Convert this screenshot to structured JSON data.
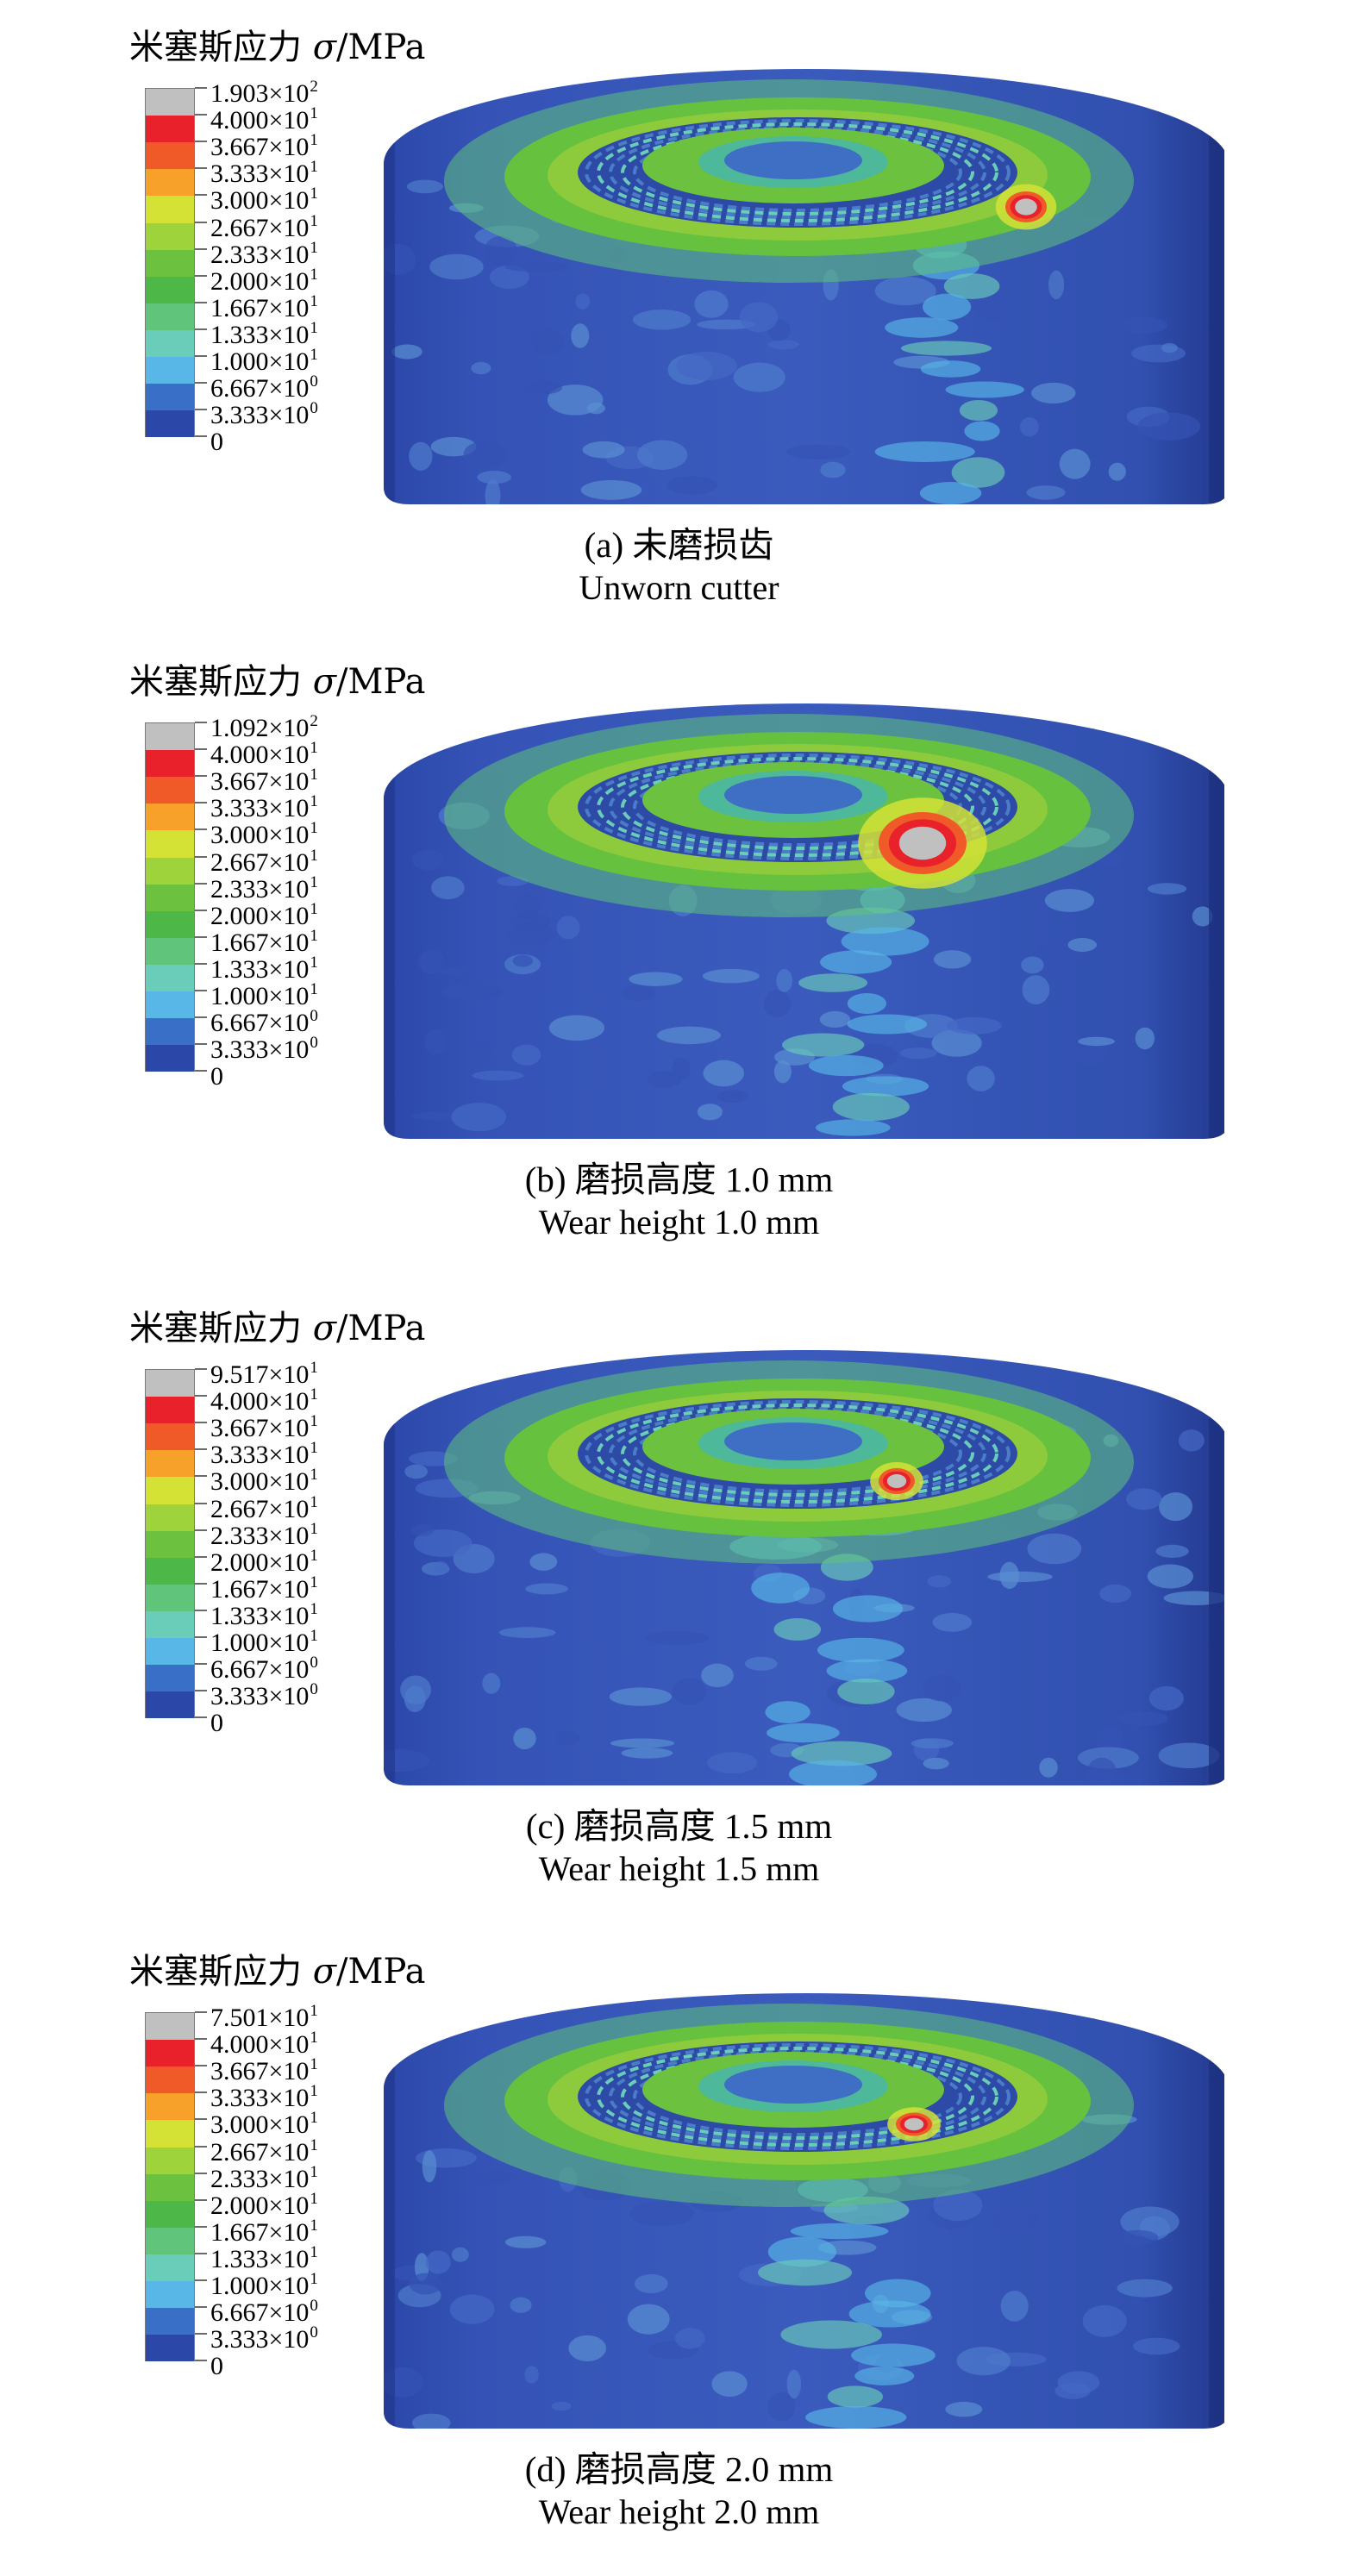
{
  "legend_title_text": "米塞斯应力 ",
  "legend_title_symbol": "σ",
  "legend_title_unit": "/MPa",
  "colors": [
    "#c0c0c0",
    "#e8212b",
    "#f05a28",
    "#f7a12a",
    "#d4e236",
    "#9fd33c",
    "#6cc23e",
    "#4db848",
    "#60c47a",
    "#6acdb9",
    "#58b7e6",
    "#3a6fc8",
    "#2b48a9"
  ],
  "panels": [
    {
      "id": "a",
      "labels": [
        {
          "base": "1.903×10",
          "exp": "2"
        },
        {
          "base": "4.000×10",
          "exp": "1"
        },
        {
          "base": "3.667×10",
          "exp": "1"
        },
        {
          "base": "3.333×10",
          "exp": "1"
        },
        {
          "base": "3.000×10",
          "exp": "1"
        },
        {
          "base": "2.667×10",
          "exp": "1"
        },
        {
          "base": "2.333×10",
          "exp": "1"
        },
        {
          "base": "2.000×10",
          "exp": "1"
        },
        {
          "base": "1.667×10",
          "exp": "1"
        },
        {
          "base": "1.333×10",
          "exp": "1"
        },
        {
          "base": "1.000×10",
          "exp": "1"
        },
        {
          "base": "6.667×10",
          "exp": "0"
        },
        {
          "base": "3.333×10",
          "exp": "0"
        },
        {
          "base": "0",
          "exp": ""
        }
      ],
      "caption_cn": "(a) 未磨损齿",
      "caption_en": "Unworn cutter"
    },
    {
      "id": "b",
      "labels": [
        {
          "base": "1.092×10",
          "exp": "2"
        },
        {
          "base": "4.000×10",
          "exp": "1"
        },
        {
          "base": "3.667×10",
          "exp": "1"
        },
        {
          "base": "3.333×10",
          "exp": "1"
        },
        {
          "base": "3.000×10",
          "exp": "1"
        },
        {
          "base": "2.667×10",
          "exp": "1"
        },
        {
          "base": "2.333×10",
          "exp": "1"
        },
        {
          "base": "2.000×10",
          "exp": "1"
        },
        {
          "base": "1.667×10",
          "exp": "1"
        },
        {
          "base": "1.333×10",
          "exp": "1"
        },
        {
          "base": "1.000×10",
          "exp": "1"
        },
        {
          "base": "6.667×10",
          "exp": "0"
        },
        {
          "base": "3.333×10",
          "exp": "0"
        },
        {
          "base": "0",
          "exp": ""
        }
      ],
      "caption_cn": "(b) 磨损高度 1.0 mm",
      "caption_en": "Wear height 1.0 mm"
    },
    {
      "id": "c",
      "labels": [
        {
          "base": "9.517×10",
          "exp": "1"
        },
        {
          "base": "4.000×10",
          "exp": "1"
        },
        {
          "base": "3.667×10",
          "exp": "1"
        },
        {
          "base": "3.333×10",
          "exp": "1"
        },
        {
          "base": "3.000×10",
          "exp": "1"
        },
        {
          "base": "2.667×10",
          "exp": "1"
        },
        {
          "base": "2.333×10",
          "exp": "1"
        },
        {
          "base": "2.000×10",
          "exp": "1"
        },
        {
          "base": "1.667×10",
          "exp": "1"
        },
        {
          "base": "1.333×10",
          "exp": "1"
        },
        {
          "base": "1.000×10",
          "exp": "1"
        },
        {
          "base": "6.667×10",
          "exp": "0"
        },
        {
          "base": "3.333×10",
          "exp": "0"
        },
        {
          "base": "0",
          "exp": ""
        }
      ],
      "caption_cn": "(c) 磨损高度 1.5 mm",
      "caption_en": "Wear height 1.5 mm"
    },
    {
      "id": "d",
      "labels": [
        {
          "base": "7.501×10",
          "exp": "1"
        },
        {
          "base": "4.000×10",
          "exp": "1"
        },
        {
          "base": "3.667×10",
          "exp": "1"
        },
        {
          "base": "3.333×10",
          "exp": "1"
        },
        {
          "base": "3.000×10",
          "exp": "1"
        },
        {
          "base": "2.667×10",
          "exp": "1"
        },
        {
          "base": "2.333×10",
          "exp": "1"
        },
        {
          "base": "2.000×10",
          "exp": "1"
        },
        {
          "base": "1.667×10",
          "exp": "1"
        },
        {
          "base": "1.333×10",
          "exp": "1"
        },
        {
          "base": "1.000×10",
          "exp": "1"
        },
        {
          "base": "6.667×10",
          "exp": "0"
        },
        {
          "base": "3.333×10",
          "exp": "0"
        },
        {
          "base": "0",
          "exp": ""
        }
      ],
      "caption_cn": "(d) 磨损高度 2.0 mm",
      "caption_en": "Wear height 2.0 mm"
    }
  ]
}
